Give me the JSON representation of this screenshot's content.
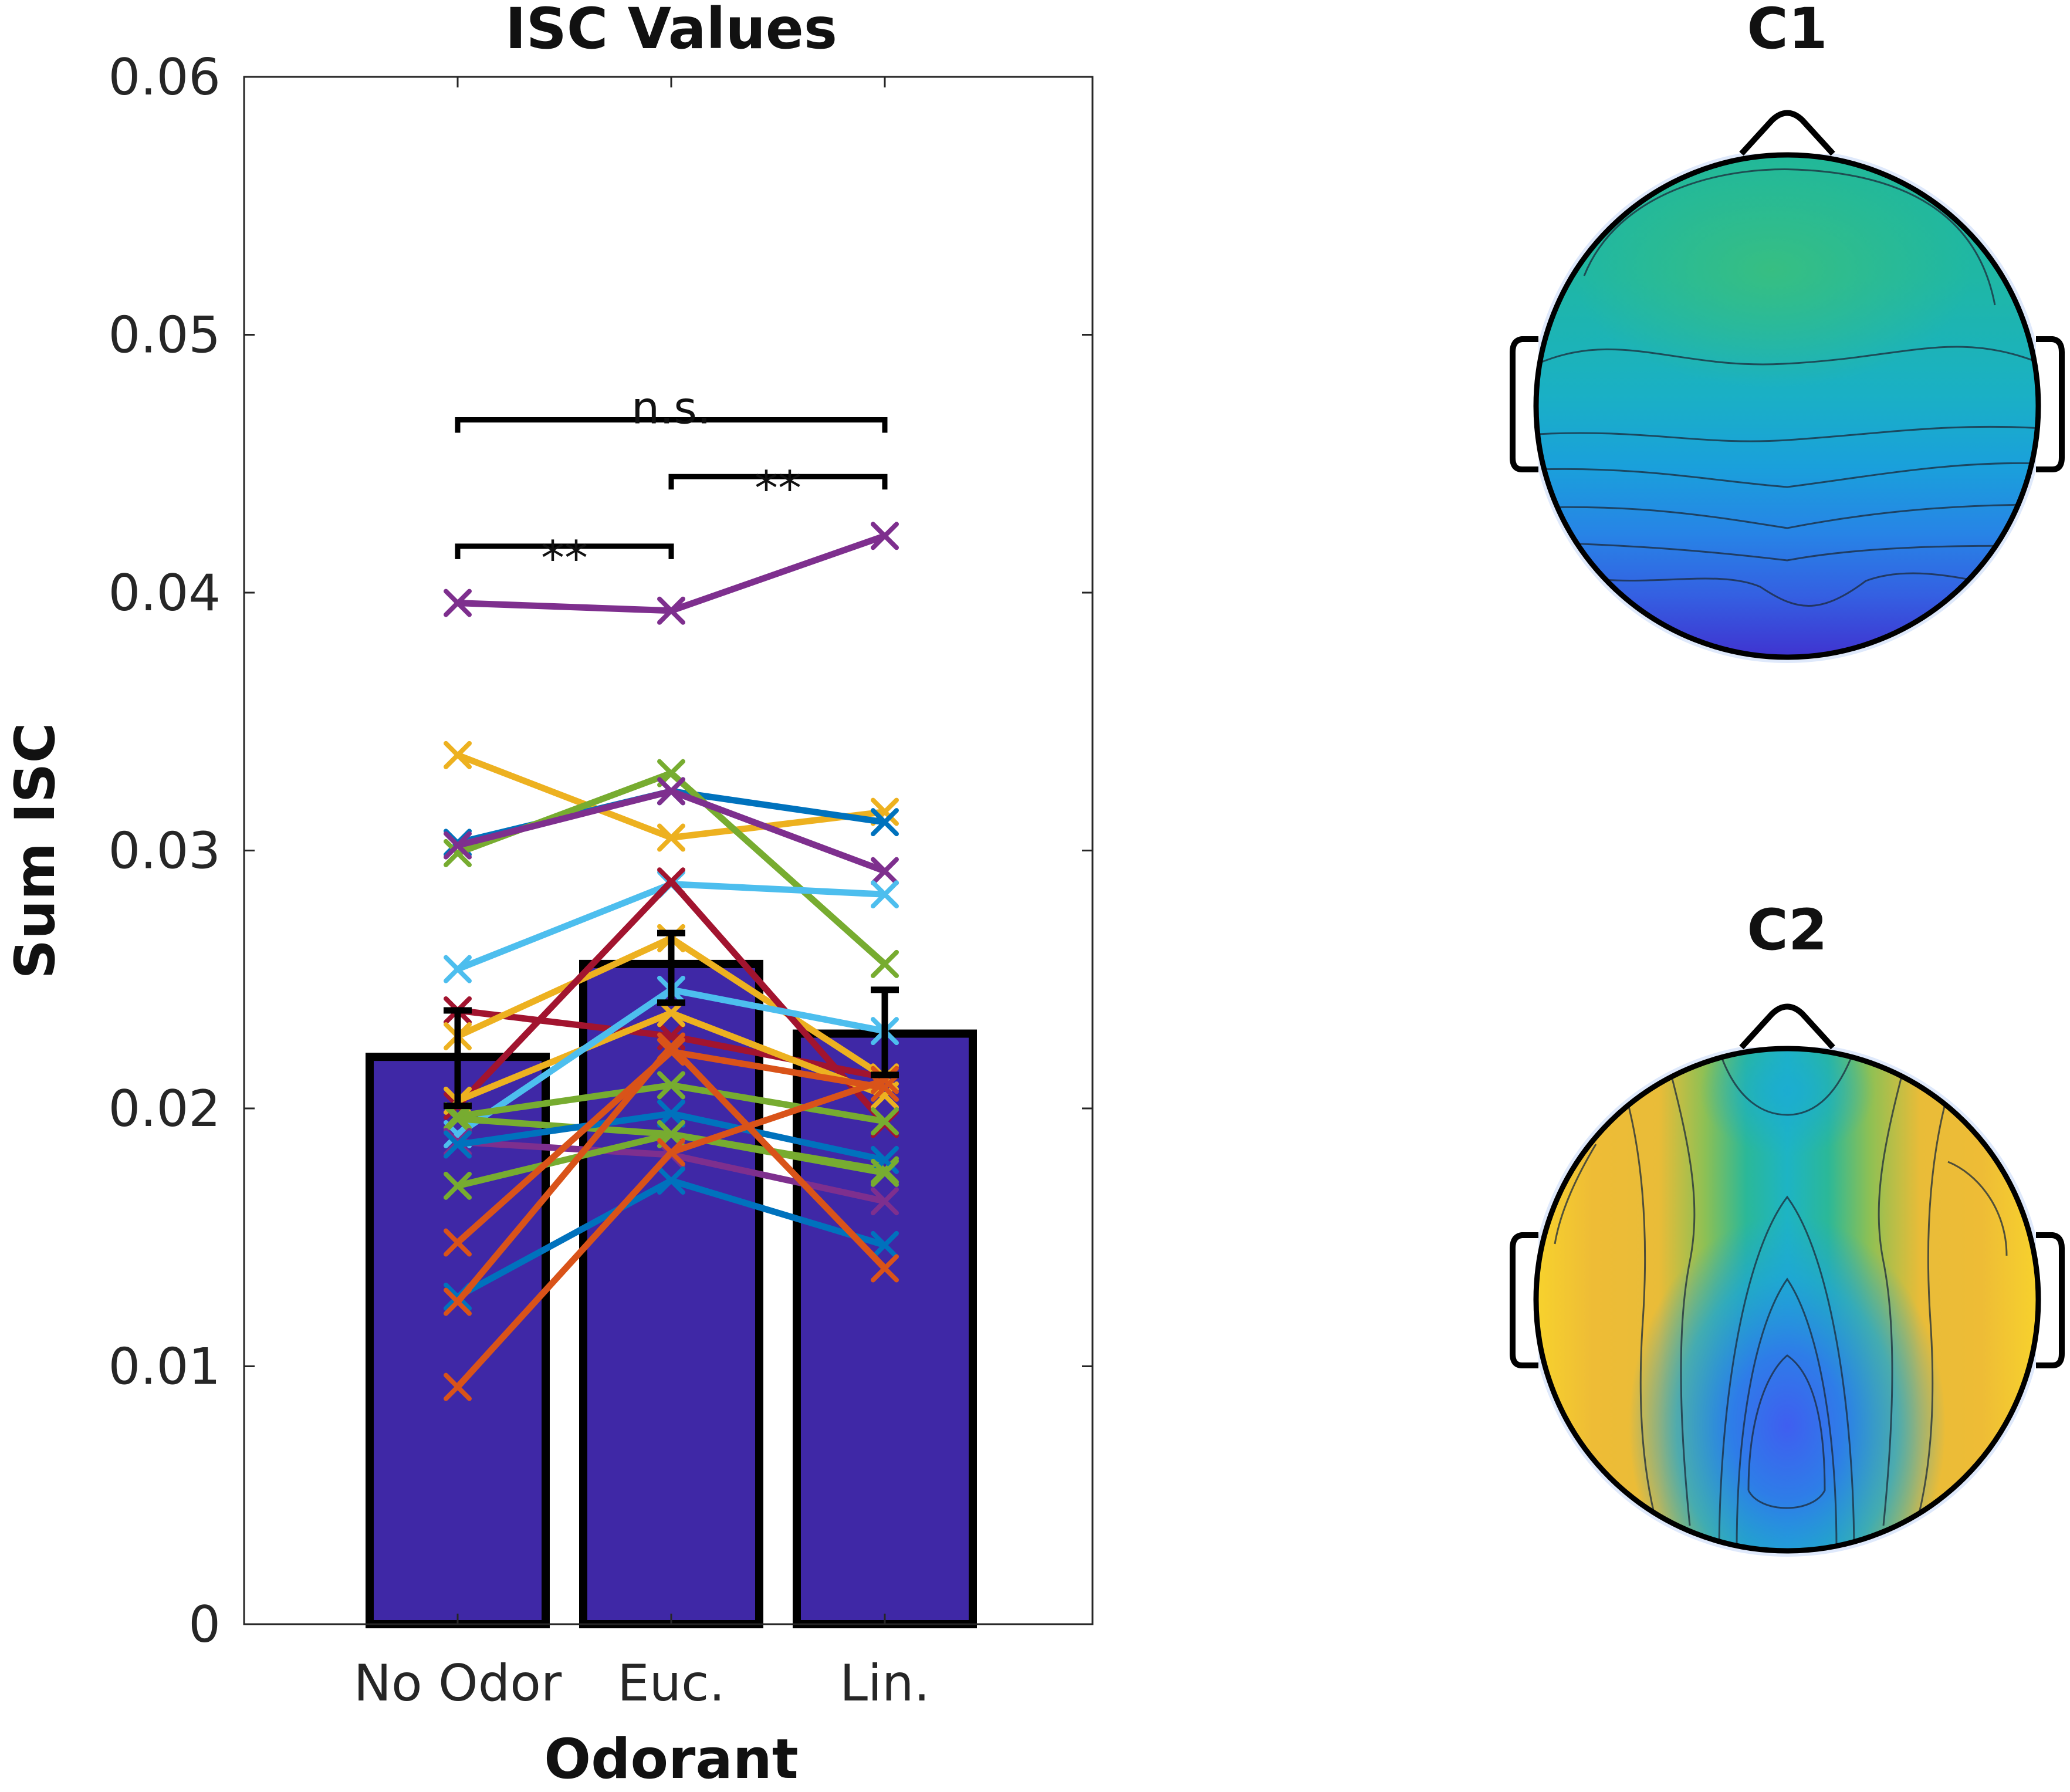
{
  "chart_data": [
    {
      "type": "bar",
      "title": "ISC Values",
      "xlabel": "Odorant",
      "ylabel": "Sum ISC",
      "categories": [
        "No Odor",
        "Euc.",
        "Lin."
      ],
      "bar_color": "#3f28a6",
      "values": [
        0.022,
        0.0256,
        0.0229
      ],
      "errors": [
        [
          0.0201,
          0.0238
        ],
        [
          0.0241,
          0.0268
        ],
        [
          0.0213,
          0.0246
        ]
      ],
      "ylim": [
        0,
        0.06
      ],
      "yticks": [
        0,
        0.01,
        0.02,
        0.03,
        0.04,
        0.05,
        0.06
      ],
      "ytick_labels": [
        "0",
        "0.01",
        "0.02",
        "0.03",
        "0.04",
        "0.05",
        "0.06"
      ],
      "significance": [
        {
          "from": 0,
          "to": 1,
          "y": 0.0418,
          "label": "**"
        },
        {
          "from": 1,
          "to": 2,
          "y": 0.0445,
          "label": "**"
        },
        {
          "from": 0,
          "to": 2,
          "y": 0.0467,
          "label": "n.s."
        }
      ],
      "subjects": [
        {
          "color": "#7e2f8e",
          "values": [
            0.0396,
            0.0393,
            0.0422
          ]
        },
        {
          "color": "#edb120",
          "values": [
            0.0337,
            0.0305,
            0.0315
          ]
        },
        {
          "color": "#0072bd",
          "values": [
            0.0303,
            0.0323,
            0.0311
          ]
        },
        {
          "color": "#77ac30",
          "values": [
            0.0299,
            0.033,
            0.0256
          ]
        },
        {
          "color": "#7e2f8e",
          "values": [
            0.0302,
            0.0323,
            0.0292
          ]
        },
        {
          "color": "#4dbeee",
          "values": [
            0.0254,
            0.0287,
            0.0283
          ]
        },
        {
          "color": "#a2142f",
          "values": [
            0.0238,
            0.0228,
            0.0212
          ]
        },
        {
          "color": "#edb120",
          "values": [
            0.0228,
            0.0266,
            0.0212
          ]
        },
        {
          "color": "#a2142f",
          "values": [
            0.0201,
            0.0288,
            0.0194
          ]
        },
        {
          "color": "#edb120",
          "values": [
            0.0203,
            0.0237,
            0.0205
          ]
        },
        {
          "color": "#4dbeee",
          "values": [
            0.019,
            0.0246,
            0.023
          ]
        },
        {
          "color": "#77ac30",
          "values": [
            0.0197,
            0.0209,
            0.0195
          ]
        },
        {
          "color": "#77ac30",
          "values": [
            0.0196,
            0.019,
            0.0176
          ]
        },
        {
          "color": "#7e2f8e",
          "values": [
            0.0187,
            0.0182,
            0.0164
          ]
        },
        {
          "color": "#0072bd",
          "values": [
            0.0186,
            0.0198,
            0.018
          ]
        },
        {
          "color": "#77ac30",
          "values": [
            0.017,
            0.019,
            0.0175
          ]
        },
        {
          "color": "#d95319",
          "values": [
            0.0148,
            0.0222,
            0.0208
          ]
        },
        {
          "color": "#0072bd",
          "values": [
            0.0127,
            0.0172,
            0.0147
          ]
        },
        {
          "color": "#d95319",
          "values": [
            0.0125,
            0.0224,
            0.0138
          ]
        },
        {
          "color": "#d95319",
          "values": [
            0.0092,
            0.0183,
            0.0211
          ]
        }
      ]
    },
    {
      "type": "heatmap",
      "title": "C1",
      "description_kind": "scalp topography",
      "colormap": "parula",
      "pattern": "frontal high, occipital low"
    },
    {
      "type": "heatmap",
      "title": "C2",
      "description_kind": "scalp topography",
      "colormap": "parula",
      "pattern": "lateral high, posterior-central low"
    }
  ]
}
